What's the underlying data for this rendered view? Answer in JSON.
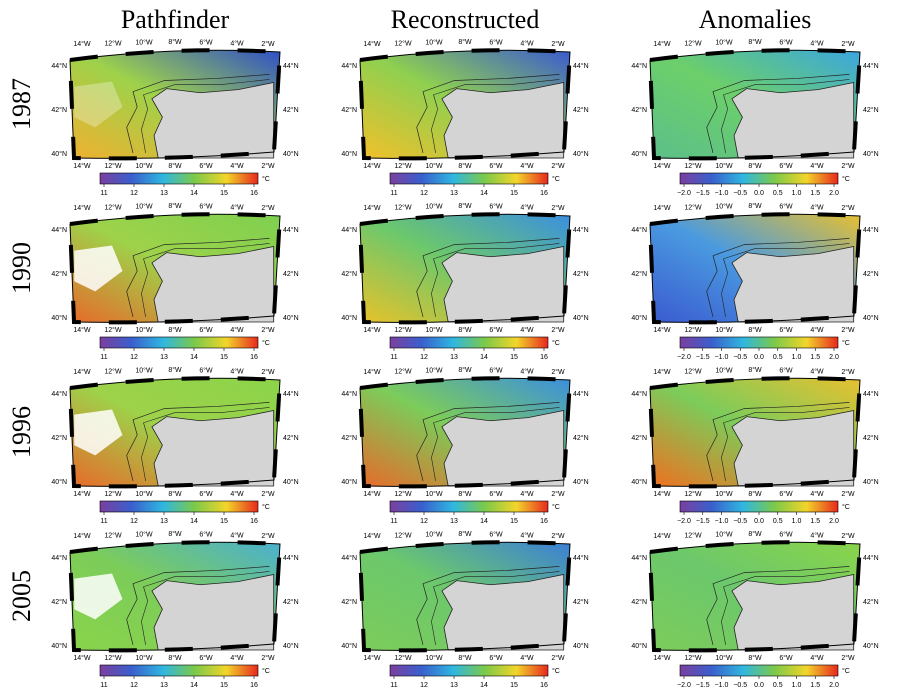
{
  "columns": [
    "Pathfinder",
    "Reconstructed",
    "Anomalies"
  ],
  "rows": [
    "1987",
    "1990",
    "1996",
    "2005"
  ],
  "lon_labels": [
    "14°W",
    "12°W",
    "10°W",
    "8°W",
    "6°W",
    "4°W",
    "2°W"
  ],
  "lat_labels": [
    "44°N",
    "42°N",
    "40°N"
  ],
  "colorbars": {
    "sst": {
      "ticks": [
        "11",
        "12",
        "13",
        "14",
        "15",
        "16"
      ],
      "unit": "°C"
    },
    "anomaly": {
      "ticks": [
        "−2.0",
        "−1.5",
        "−1.0",
        "−0.5",
        "0.0",
        "0.5",
        "1.0",
        "1.5",
        "2.0"
      ],
      "unit": "°C"
    }
  }
}
